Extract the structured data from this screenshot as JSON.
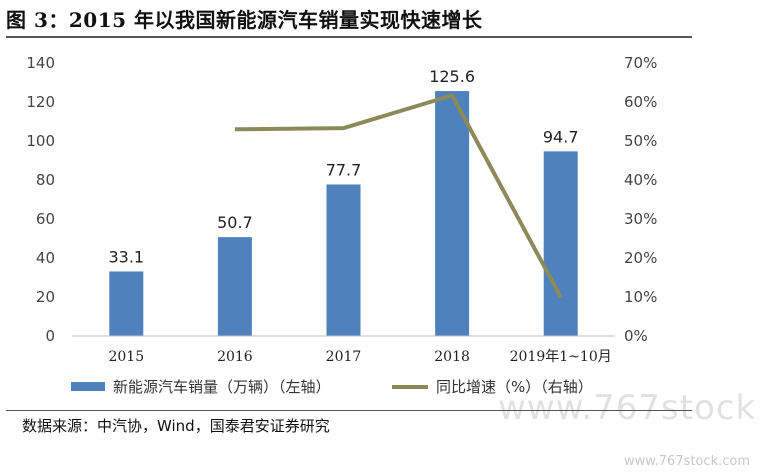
{
  "figure": {
    "title": "图 3：2015 年以我国新能源汽车销量实现快速增长",
    "source": "数据来源：中汽协，Wind，国泰君安证券研究",
    "watermark": "www.767stock.com",
    "footer_url": "www.767stock.com"
  },
  "colors": {
    "bar": "#4f81bd",
    "line": "#8c8a58",
    "axis": "#bfbfbf"
  },
  "chart_data": {
    "type": "bar",
    "categories": [
      "2015",
      "2016",
      "2017",
      "2018",
      "2019年1~10月"
    ],
    "series": [
      {
        "name": "新能源汽车销量（万辆）（左轴）",
        "type": "bar",
        "axis": "left",
        "values": [
          33.1,
          50.7,
          77.7,
          125.6,
          94.7
        ],
        "labels": [
          "33.1",
          "50.7",
          "77.7",
          "125.6",
          "94.7"
        ]
      },
      {
        "name": "同比增速（%）（右轴）",
        "type": "line",
        "axis": "right",
        "values": [
          null,
          53.0,
          53.3,
          61.7,
          10.0
        ]
      }
    ],
    "left_axis": {
      "ylim": [
        0,
        140
      ],
      "ticks": [
        "0",
        "20",
        "40",
        "60",
        "80",
        "100",
        "120",
        "140"
      ]
    },
    "right_axis": {
      "ylim": [
        0,
        70
      ],
      "ticks": [
        "0%",
        "10%",
        "20%",
        "30%",
        "40%",
        "50%",
        "60%",
        "70%"
      ]
    },
    "legend_position": "bottom",
    "grid": false
  }
}
